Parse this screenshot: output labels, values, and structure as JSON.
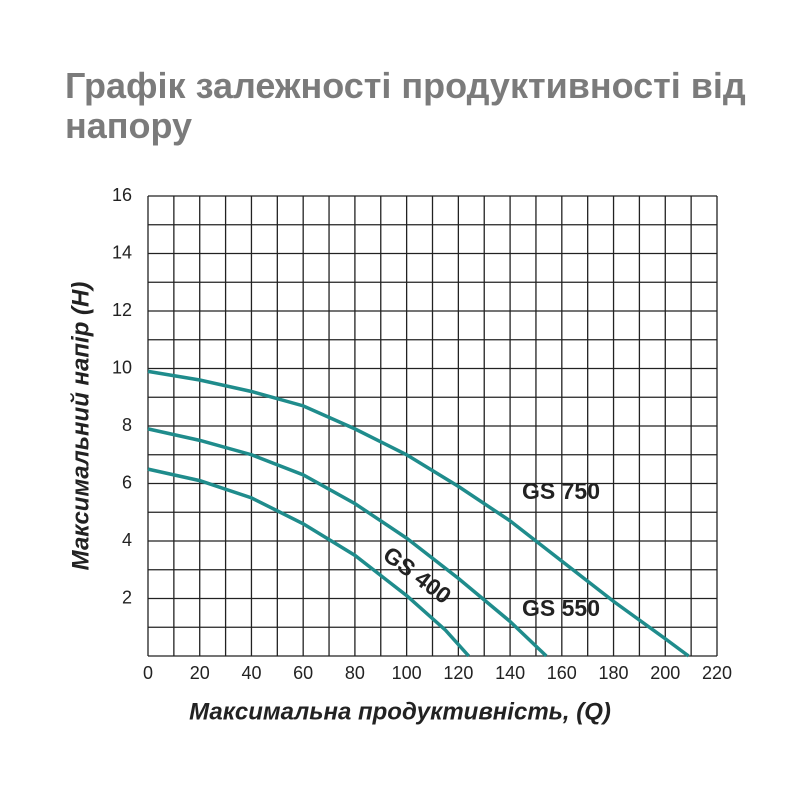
{
  "chart_data": {
    "type": "line",
    "title": "Графік залежності продуктивності від напору",
    "x_label": "Максимальна продуктивність, (Q)",
    "y_label": "Максимальний напір (H)",
    "xlim": [
      0,
      220
    ],
    "ylim": [
      0,
      16
    ],
    "xticks": [
      0,
      20,
      40,
      60,
      80,
      100,
      120,
      140,
      160,
      180,
      200,
      220
    ],
    "yticks": [
      2,
      4,
      6,
      8,
      10,
      12,
      14,
      16
    ],
    "xgrid": [
      0,
      10,
      20,
      30,
      40,
      50,
      60,
      70,
      80,
      90,
      100,
      110,
      120,
      130,
      140,
      150,
      160,
      170,
      180,
      190,
      200,
      210,
      220
    ],
    "ygrid": [
      0,
      1,
      2,
      3,
      4,
      5,
      6,
      7,
      8,
      9,
      10,
      11,
      12,
      13,
      14,
      15,
      16
    ],
    "grid": true,
    "series": [
      {
        "name": "GS 750",
        "color": "#1f8c8c",
        "x": [
          0,
          20,
          40,
          60,
          80,
          100,
          120,
          140,
          160,
          180,
          200,
          209
        ],
        "values": [
          9.9,
          9.6,
          9.2,
          8.7,
          7.9,
          7.0,
          5.9,
          4.7,
          3.3,
          1.9,
          0.6,
          0
        ]
      },
      {
        "name": "GS 550",
        "color": "#1f8c8c",
        "x": [
          0,
          20,
          40,
          60,
          80,
          100,
          120,
          140,
          154
        ],
        "values": [
          7.9,
          7.5,
          7.0,
          6.3,
          5.3,
          4.1,
          2.7,
          1.2,
          0
        ]
      },
      {
        "name": "GS 400",
        "color": "#1f8c8c",
        "x": [
          0,
          20,
          40,
          60,
          80,
          100,
          115,
          124
        ],
        "values": [
          6.5,
          6.1,
          5.5,
          4.6,
          3.5,
          2.1,
          0.9,
          0
        ]
      }
    ]
  }
}
